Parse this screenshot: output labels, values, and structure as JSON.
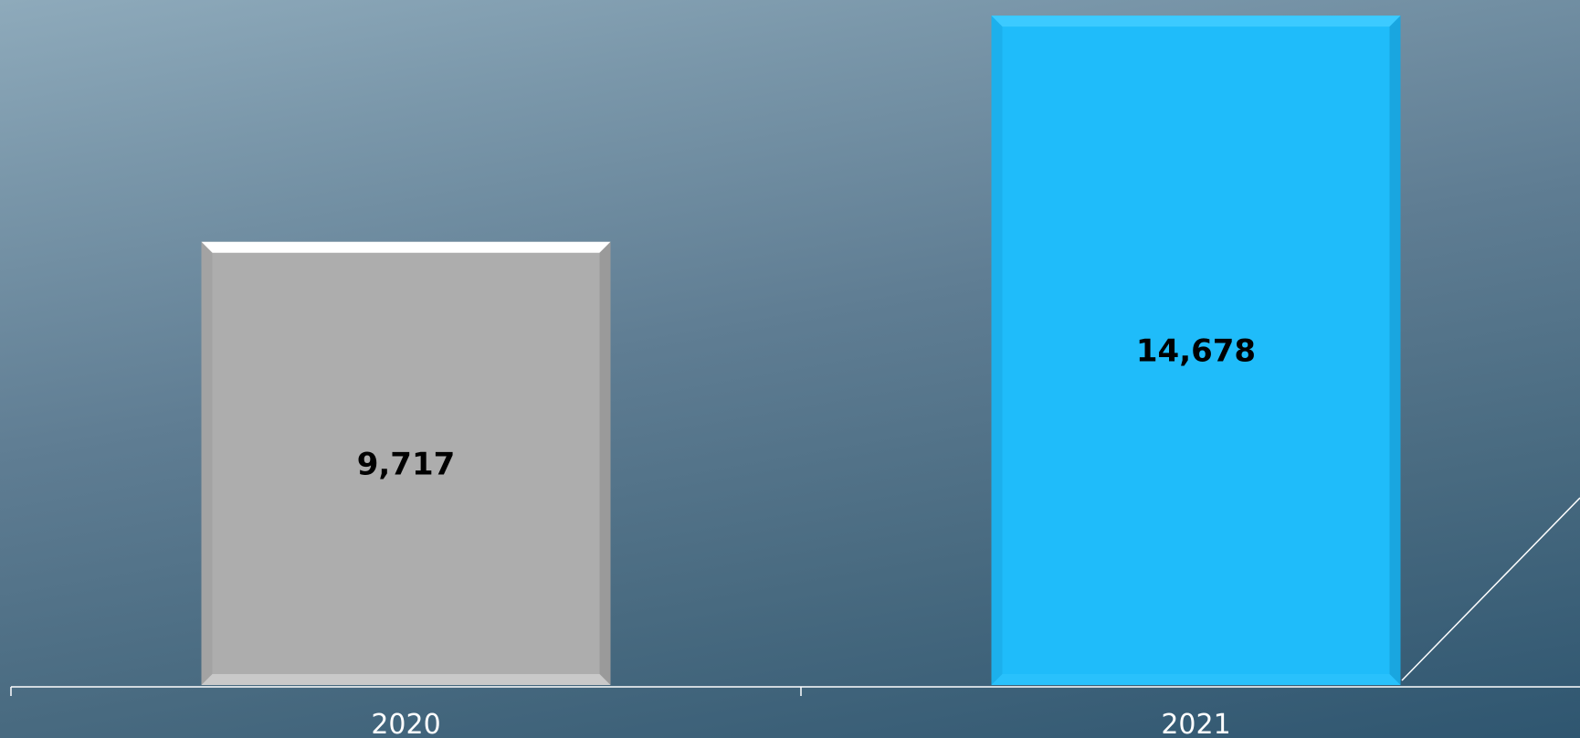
{
  "chart_data": {
    "type": "bar",
    "categories": [
      "2020",
      "2021"
    ],
    "values": [
      9717,
      14678
    ],
    "value_labels": [
      "9,717",
      "14,678"
    ],
    "title": "",
    "xlabel": "",
    "ylabel": "",
    "ylim": [
      0,
      14900
    ],
    "grid": false,
    "legend": "none",
    "bar_colors": [
      "#adadad",
      "#1fbcfa"
    ],
    "bar_highlight_colors": [
      "#ffffff",
      "#3ccaff"
    ],
    "bar_shade_colors": [
      "#9a9a9a",
      "#19a6e0"
    ],
    "axis_color": "#ffffff",
    "background_colors": [
      "#8eaabb",
      "#2f5670"
    ]
  }
}
